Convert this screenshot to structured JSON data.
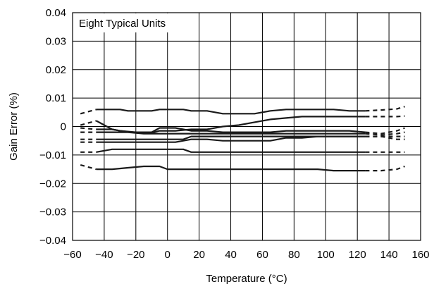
{
  "chart_data": {
    "type": "line",
    "title": "",
    "xlabel": "Temperature (°C)",
    "ylabel": "Gain Error (%)",
    "xlim": [
      -60,
      160
    ],
    "ylim": [
      -0.04,
      0.04
    ],
    "x_ticks": [
      -60,
      -40,
      -20,
      0,
      20,
      40,
      60,
      80,
      100,
      120,
      140,
      160
    ],
    "y_ticks": [
      0.04,
      0.03,
      0.02,
      0.01,
      0,
      -0.01,
      -0.02,
      -0.03,
      -0.04
    ],
    "x_tick_labels": [
      "−60",
      "−40",
      "−20",
      "0",
      "20",
      "40",
      "60",
      "80",
      "100",
      "120",
      "140",
      "160"
    ],
    "y_tick_labels": [
      "0.04",
      "0.03",
      "0.02",
      "0.01",
      "0",
      "−0.01",
      "−0.02",
      "−0.03",
      "−0.04"
    ],
    "grid": true,
    "annotation": "Eight Typical Units",
    "solid_range": [
      -45,
      125
    ],
    "colors": {
      "line": "#1a1a1a",
      "grid": "#000000",
      "background": "#ffffff"
    },
    "series": [
      {
        "x": [
          -55,
          -45,
          -35,
          -30,
          -25,
          -15,
          -10,
          -5,
          5,
          10,
          15,
          25,
          35,
          45,
          55,
          65,
          75,
          85,
          95,
          105,
          115,
          125,
          135,
          145,
          150
        ],
        "values": [
          0.0045,
          0.006,
          0.006,
          0.006,
          0.0055,
          0.0055,
          0.0055,
          0.006,
          0.006,
          0.006,
          0.0055,
          0.0055,
          0.0045,
          0.0045,
          0.0045,
          0.0055,
          0.006,
          0.006,
          0.006,
          0.006,
          0.0055,
          0.0055,
          0.0058,
          0.0062,
          0.007
        ]
      },
      {
        "x": [
          -55,
          -45,
          -35,
          -30,
          -20,
          -10,
          -5,
          5,
          15,
          25,
          35,
          45,
          55,
          65,
          75,
          85,
          95,
          105,
          115,
          125,
          135,
          145,
          150
        ],
        "values": [
          0.0005,
          0.002,
          -0.001,
          -0.0015,
          -0.0022,
          -0.0022,
          -0.0015,
          -0.0015,
          -0.001,
          -0.001,
          0.0,
          0.0005,
          0.0015,
          0.0025,
          0.003,
          0.0035,
          0.0035,
          0.0035,
          0.0035,
          0.0035,
          0.0035,
          0.0035,
          0.0037
        ]
      },
      {
        "x": [
          -55,
          -45,
          -35,
          -30,
          -20,
          -10,
          -5,
          0,
          5,
          10,
          15,
          25,
          35,
          45,
          55,
          65,
          75,
          85,
          95,
          105,
          115,
          125,
          135,
          145,
          150
        ],
        "values": [
          -0.0005,
          -0.001,
          -0.001,
          -0.0015,
          -0.002,
          -0.002,
          -0.0005,
          -0.0005,
          -0.0005,
          -0.001,
          -0.0015,
          -0.0015,
          -0.002,
          -0.002,
          -0.002,
          -0.002,
          -0.0015,
          -0.0015,
          -0.0015,
          -0.0015,
          -0.0015,
          -0.002,
          -0.0025,
          -0.0015,
          -0.0005
        ]
      },
      {
        "x": [
          -55,
          -45,
          -35,
          -25,
          -15,
          -5,
          5,
          15,
          25,
          35,
          45,
          55,
          65,
          75,
          85,
          95,
          105,
          115,
          125,
          135,
          145,
          150
        ],
        "values": [
          -0.002,
          -0.002,
          -0.002,
          -0.002,
          -0.0025,
          -0.0025,
          -0.0025,
          -0.0025,
          -0.0025,
          -0.0025,
          -0.0025,
          -0.0025,
          -0.0025,
          -0.0025,
          -0.0025,
          -0.0025,
          -0.0025,
          -0.0025,
          -0.0025,
          -0.003,
          -0.0025,
          -0.002
        ]
      },
      {
        "x": [
          -55,
          -45,
          -35,
          -25,
          -15,
          -5,
          5,
          10,
          15,
          25,
          35,
          45,
          55,
          65,
          75,
          85,
          95,
          105,
          115,
          125,
          135,
          145,
          150
        ],
        "values": [
          -0.0045,
          -0.0045,
          -0.0045,
          -0.0045,
          -0.0045,
          -0.0045,
          -0.0045,
          -0.0045,
          -0.0035,
          -0.0035,
          -0.0035,
          -0.0035,
          -0.0035,
          -0.0035,
          -0.0035,
          -0.0035,
          -0.0035,
          -0.0035,
          -0.0035,
          -0.0035,
          -0.0035,
          -0.0035,
          -0.0035
        ]
      },
      {
        "x": [
          -55,
          -45,
          -35,
          -25,
          -15,
          -5,
          5,
          15,
          25,
          35,
          45,
          55,
          65,
          75,
          85,
          95,
          105,
          115,
          125,
          135,
          145,
          150
        ],
        "values": [
          -0.0055,
          -0.0055,
          -0.0055,
          -0.0055,
          -0.0055,
          -0.0055,
          -0.0055,
          -0.0045,
          -0.0045,
          -0.005,
          -0.005,
          -0.005,
          -0.005,
          -0.004,
          -0.004,
          -0.0035,
          -0.0035,
          -0.0035,
          -0.0035,
          -0.0035,
          -0.0045,
          -0.0045
        ]
      },
      {
        "x": [
          -55,
          -45,
          -35,
          -25,
          -15,
          -5,
          5,
          10,
          15,
          25,
          35,
          45,
          55,
          65,
          75,
          85,
          95,
          105,
          115,
          125,
          135,
          145,
          150
        ],
        "values": [
          -0.009,
          -0.009,
          -0.008,
          -0.008,
          -0.008,
          -0.008,
          -0.008,
          -0.008,
          -0.009,
          -0.009,
          -0.009,
          -0.009,
          -0.009,
          -0.009,
          -0.009,
          -0.009,
          -0.009,
          -0.009,
          -0.009,
          -0.009,
          -0.009,
          -0.009,
          -0.009
        ]
      },
      {
        "x": [
          -55,
          -45,
          -35,
          -25,
          -15,
          -5,
          0,
          5,
          15,
          25,
          35,
          45,
          55,
          65,
          75,
          85,
          95,
          105,
          115,
          125,
          135,
          145,
          150
        ],
        "values": [
          -0.0135,
          -0.015,
          -0.015,
          -0.0145,
          -0.014,
          -0.014,
          -0.015,
          -0.015,
          -0.015,
          -0.015,
          -0.015,
          -0.015,
          -0.015,
          -0.015,
          -0.015,
          -0.015,
          -0.015,
          -0.0155,
          -0.0155,
          -0.0155,
          -0.0155,
          -0.015,
          -0.014
        ]
      }
    ]
  }
}
